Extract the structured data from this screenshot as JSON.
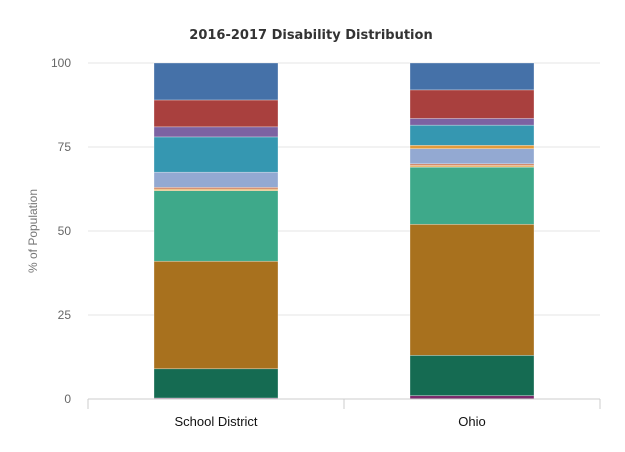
{
  "chart_data": {
    "type": "bar",
    "stacked": true,
    "title": "2016-2017 Disability Distribution",
    "xlabel": "",
    "ylabel": "% of Population",
    "ylim": [
      0,
      100
    ],
    "yticks": [
      0,
      25,
      50,
      75,
      100
    ],
    "grid": true,
    "categories": [
      "School District",
      "Ohio"
    ],
    "series": [
      {
        "color": "#7b2b6c",
        "values": [
          0.3,
          1.0
        ]
      },
      {
        "color": "#156b52",
        "values": [
          8.7,
          12.0
        ]
      },
      {
        "color": "#a8711e",
        "values": [
          32.0,
          39.0
        ]
      },
      {
        "color": "#3ea98a",
        "values": [
          21.0,
          17.0
        ]
      },
      {
        "color": "#e9b56a",
        "values": [
          0.5,
          0.5
        ]
      },
      {
        "color": "#cf7f5c",
        "values": [
          0.5,
          0.5
        ]
      },
      {
        "color": "#93a9d2",
        "values": [
          4.5,
          4.5
        ]
      },
      {
        "color": "#e39a3a",
        "values": [
          0.0,
          1.0
        ]
      },
      {
        "color": "#3597b1",
        "values": [
          10.5,
          6.0
        ]
      },
      {
        "color": "#7c62a2",
        "values": [
          3.0,
          2.0
        ]
      },
      {
        "color": "#a9403e",
        "values": [
          8.0,
          8.5
        ]
      },
      {
        "color": "#4571a8",
        "values": [
          11.0,
          8.0
        ]
      }
    ]
  }
}
